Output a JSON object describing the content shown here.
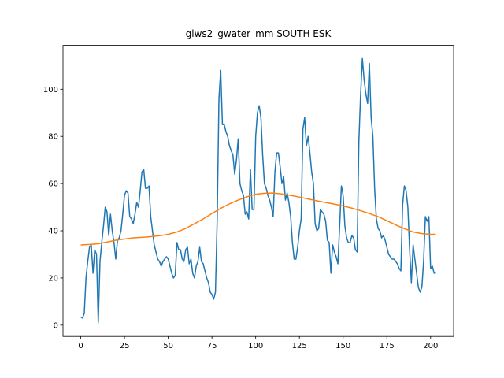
{
  "chart_data": {
    "type": "line",
    "title": "glws2_gwater_mm SOUTH ESK",
    "xlim": [
      -10.15,
      213.15
    ],
    "ylim": [
      -4.8,
      118.6
    ],
    "xticks": [
      0,
      25,
      50,
      75,
      100,
      125,
      150,
      175,
      200
    ],
    "yticks": [
      0,
      20,
      40,
      60,
      80,
      100
    ],
    "series": [
      {
        "color": "#1f77b4",
        "x": [
          0,
          1,
          2,
          3,
          4,
          5,
          6,
          7,
          8,
          9,
          10,
          11,
          12,
          13,
          14,
          15,
          16,
          17,
          18,
          19,
          20,
          21,
          22,
          23,
          24,
          25,
          26,
          27,
          28,
          29,
          30,
          31,
          32,
          33,
          34,
          35,
          36,
          37,
          38,
          39,
          40,
          41,
          42,
          43,
          44,
          45,
          46,
          47,
          48,
          49,
          50,
          51,
          52,
          53,
          54,
          55,
          56,
          57,
          58,
          59,
          60,
          61,
          62,
          63,
          64,
          65,
          66,
          67,
          68,
          69,
          70,
          71,
          72,
          73,
          74,
          75,
          76,
          77,
          78,
          79,
          80,
          81,
          82,
          83,
          84,
          85,
          86,
          87,
          88,
          89,
          90,
          91,
          92,
          93,
          94,
          95,
          96,
          97,
          98,
          99,
          100,
          101,
          102,
          103,
          104,
          105,
          106,
          107,
          108,
          109,
          110,
          111,
          112,
          113,
          114,
          115,
          116,
          117,
          118,
          119,
          120,
          121,
          122,
          123,
          124,
          125,
          126,
          127,
          128,
          129,
          130,
          131,
          132,
          133,
          134,
          135,
          136,
          137,
          138,
          139,
          140,
          141,
          142,
          143,
          144,
          145,
          146,
          147,
          148,
          149,
          150,
          151,
          152,
          153,
          154,
          155,
          156,
          157,
          158,
          159,
          160,
          161,
          162,
          163,
          164,
          165,
          166,
          167,
          168,
          169,
          170,
          171,
          172,
          173,
          174,
          175,
          176,
          177,
          178,
          179,
          180,
          181,
          182,
          183,
          184,
          185,
          186,
          187,
          188,
          189,
          190,
          191,
          192,
          193,
          194,
          195,
          196,
          197,
          198,
          199,
          200,
          201,
          202,
          203
        ],
        "values": [
          3.5,
          3,
          5,
          20,
          27,
          33,
          34,
          22,
          32,
          30,
          1,
          27,
          35,
          42,
          50,
          48,
          38,
          47,
          40,
          35,
          28,
          36,
          37,
          40,
          47,
          55,
          57,
          56,
          46,
          45,
          43,
          47,
          52,
          50,
          57,
          65,
          66,
          58,
          58,
          59,
          46,
          40,
          34,
          31,
          28,
          27,
          25,
          27,
          28,
          29,
          28,
          25,
          22,
          20,
          21,
          35,
          32,
          32,
          28,
          27,
          32,
          33,
          26,
          28,
          22,
          20,
          25,
          27,
          33,
          27,
          26,
          23,
          20,
          18,
          14,
          13,
          11,
          14,
          45,
          96,
          108,
          85,
          85,
          82,
          80,
          76,
          74,
          72,
          64,
          70,
          79,
          60,
          57,
          55,
          47,
          48,
          45,
          66,
          49,
          49,
          80,
          90,
          93,
          88,
          72,
          60,
          58,
          55,
          53,
          50,
          46,
          65,
          73,
          73,
          67,
          60,
          63,
          53,
          56,
          52,
          46,
          35,
          28,
          28,
          33,
          40,
          45,
          83,
          88,
          76,
          80,
          73,
          65,
          60,
          43,
          40,
          41,
          49,
          48,
          47,
          44,
          36,
          35,
          22,
          34,
          31,
          29,
          26,
          42,
          59,
          55,
          42,
          37,
          35,
          35,
          38,
          37,
          32,
          31,
          78,
          98,
          113,
          104,
          98,
          94,
          111,
          88,
          80,
          58,
          45,
          41,
          40,
          37,
          38,
          36,
          33,
          30,
          29,
          28,
          28,
          27,
          26,
          24,
          23,
          51,
          59,
          57,
          50,
          32,
          18,
          34,
          28,
          22,
          16,
          14,
          16,
          27,
          46,
          44,
          46,
          24,
          25,
          22,
          22
        ]
      },
      {
        "color": "#ff7f0e",
        "x": [
          0,
          5,
          10,
          15,
          20,
          25,
          30,
          35,
          40,
          45,
          50,
          55,
          60,
          65,
          70,
          75,
          80,
          85,
          90,
          95,
          100,
          105,
          110,
          115,
          120,
          125,
          130,
          135,
          140,
          145,
          150,
          155,
          160,
          165,
          170,
          175,
          180,
          185,
          190,
          195,
          200,
          203
        ],
        "values": [
          34,
          34.2,
          34.5,
          35.2,
          36,
          36.5,
          37,
          37.2,
          37.5,
          37.9,
          38.5,
          39.5,
          41,
          43,
          45,
          47.3,
          49.5,
          51.4,
          53,
          54.4,
          55.5,
          55.9,
          56,
          55.6,
          55,
          54.3,
          53.5,
          52.7,
          52,
          51.3,
          50.5,
          49.6,
          48.5,
          47.3,
          46,
          44.3,
          42.5,
          40.9,
          39.5,
          38.8,
          38.5,
          38.5
        ]
      }
    ]
  }
}
